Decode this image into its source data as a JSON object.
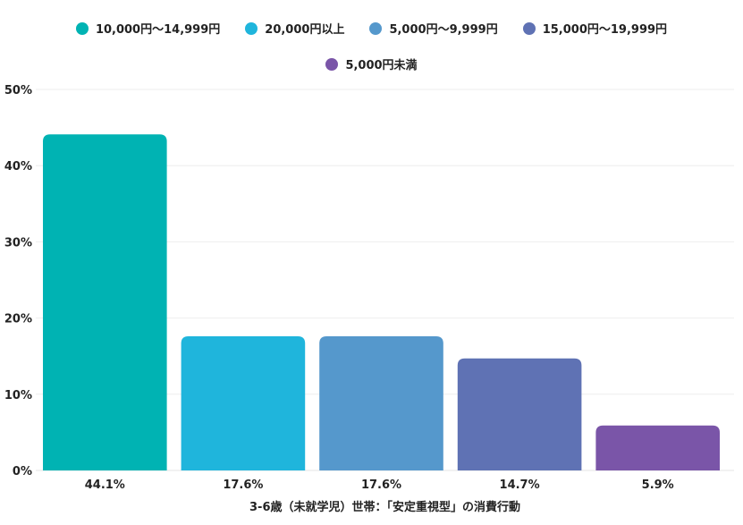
{
  "chart_data": {
    "type": "bar",
    "title": "",
    "xlabel": "3-6歳（未就学児）世帯：「安定重視型」の消費行動",
    "ylabel": "",
    "ylim": [
      0,
      50
    ],
    "yticks": [
      0,
      10,
      20,
      30,
      40,
      50
    ],
    "ytick_suffix": "%",
    "grid": true,
    "legend_position": "top",
    "categories": [
      "10,000円〜14,999円",
      "20,000円以上",
      "5,000円〜9,999円",
      "15,000円〜19,999円",
      "5,000円未満"
    ],
    "values": [
      44.1,
      17.6,
      17.6,
      14.7,
      5.9
    ],
    "value_labels": [
      "44.1%",
      "17.6%",
      "17.6%",
      "14.7%",
      "5.9%"
    ],
    "colors": [
      "#00b3b3",
      "#1fb5dc",
      "#5598cc",
      "#5f72b4",
      "#7a55a8"
    ]
  }
}
